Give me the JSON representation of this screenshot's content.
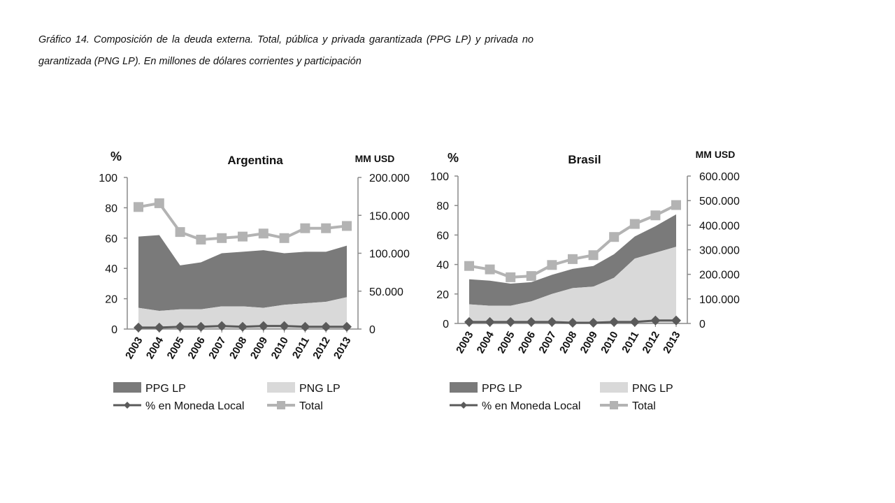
{
  "caption": "Gráfico 14. Composición de la deuda externa.  Total, pública y privada garantizada (PPG LP) y privada no garantizada (PNG LP). En millones de dólares corrientes y participación",
  "chart_data": [
    {
      "type": "area",
      "title": "Argentina",
      "ylabel_left": "%",
      "ylabel_right": "MM USD",
      "categories": [
        "2003",
        "2004",
        "2005",
        "2006",
        "2007",
        "2008",
        "2009",
        "2010",
        "2011",
        "2012",
        "2013"
      ],
      "ylim_left": [
        0,
        100
      ],
      "yticks_left": [
        "0",
        "20",
        "40",
        "60",
        "80",
        "100"
      ],
      "ylim_right": [
        0,
        200000
      ],
      "yticks_right": [
        "0",
        "50.000",
        "100.000",
        "150.000",
        "200.000"
      ],
      "grid": false,
      "legend_position": "bottom",
      "series": [
        {
          "name": "PPG LP",
          "kind": "stacked-area",
          "axis": "left",
          "color": "#7a7a7a",
          "values": [
            47,
            50,
            29,
            31,
            35,
            36,
            38,
            34,
            34,
            33,
            34
          ]
        },
        {
          "name": "PNG LP",
          "kind": "stacked-area",
          "axis": "left",
          "color": "#d9d9d9",
          "values": [
            14,
            12,
            13,
            13,
            15,
            15,
            14,
            16,
            17,
            18,
            21
          ]
        },
        {
          "name": "% en Moneda Local",
          "kind": "line",
          "marker": "diamond",
          "axis": "left",
          "color": "#5a5a5a",
          "values": [
            1,
            1,
            1.5,
            1.5,
            2,
            1.5,
            2,
            2,
            1.5,
            1.5,
            1.5
          ]
        },
        {
          "name": "Total",
          "kind": "line",
          "marker": "square",
          "axis": "right",
          "color": "#b3b3b3",
          "values": [
            161000,
            166000,
            128000,
            118000,
            120000,
            122000,
            126000,
            120000,
            133000,
            133000,
            136000
          ]
        }
      ]
    },
    {
      "type": "area",
      "title": "Brasil",
      "ylabel_left": "%",
      "ylabel_right": "MM USD",
      "categories": [
        "2003",
        "2004",
        "2005",
        "2006",
        "2007",
        "2008",
        "2009",
        "2010",
        "2011",
        "2012",
        "2013"
      ],
      "ylim_left": [
        0,
        100
      ],
      "yticks_left": [
        "0",
        "20",
        "40",
        "60",
        "80",
        "100"
      ],
      "ylim_right": [
        0,
        600000
      ],
      "yticks_right": [
        "0",
        "100.000",
        "200.000",
        "300.000",
        "400.000",
        "500.000",
        "600.000"
      ],
      "grid": false,
      "legend_position": "bottom",
      "series": [
        {
          "name": "PPG LP",
          "kind": "stacked-area",
          "axis": "left",
          "color": "#7a7a7a",
          "values": [
            17,
            17,
            15,
            13,
            13,
            13,
            14,
            16,
            15,
            18,
            22
          ]
        },
        {
          "name": "PNG LP",
          "kind": "stacked-area",
          "axis": "left",
          "color": "#d9d9d9",
          "values": [
            13,
            12,
            12,
            15,
            20,
            24,
            25,
            31,
            44,
            48,
            52
          ]
        },
        {
          "name": "% en Moneda Local",
          "kind": "line",
          "marker": "diamond",
          "axis": "left",
          "color": "#5a5a5a",
          "values": [
            1,
            1,
            1,
            1,
            1,
            0.5,
            0.5,
            1,
            1,
            2,
            2
          ]
        },
        {
          "name": "Total",
          "kind": "line",
          "marker": "square",
          "axis": "right",
          "color": "#b3b3b3",
          "values": [
            234000,
            220000,
            188000,
            193000,
            238000,
            262000,
            278000,
            352000,
            405000,
            440000,
            482000
          ]
        }
      ]
    }
  ]
}
